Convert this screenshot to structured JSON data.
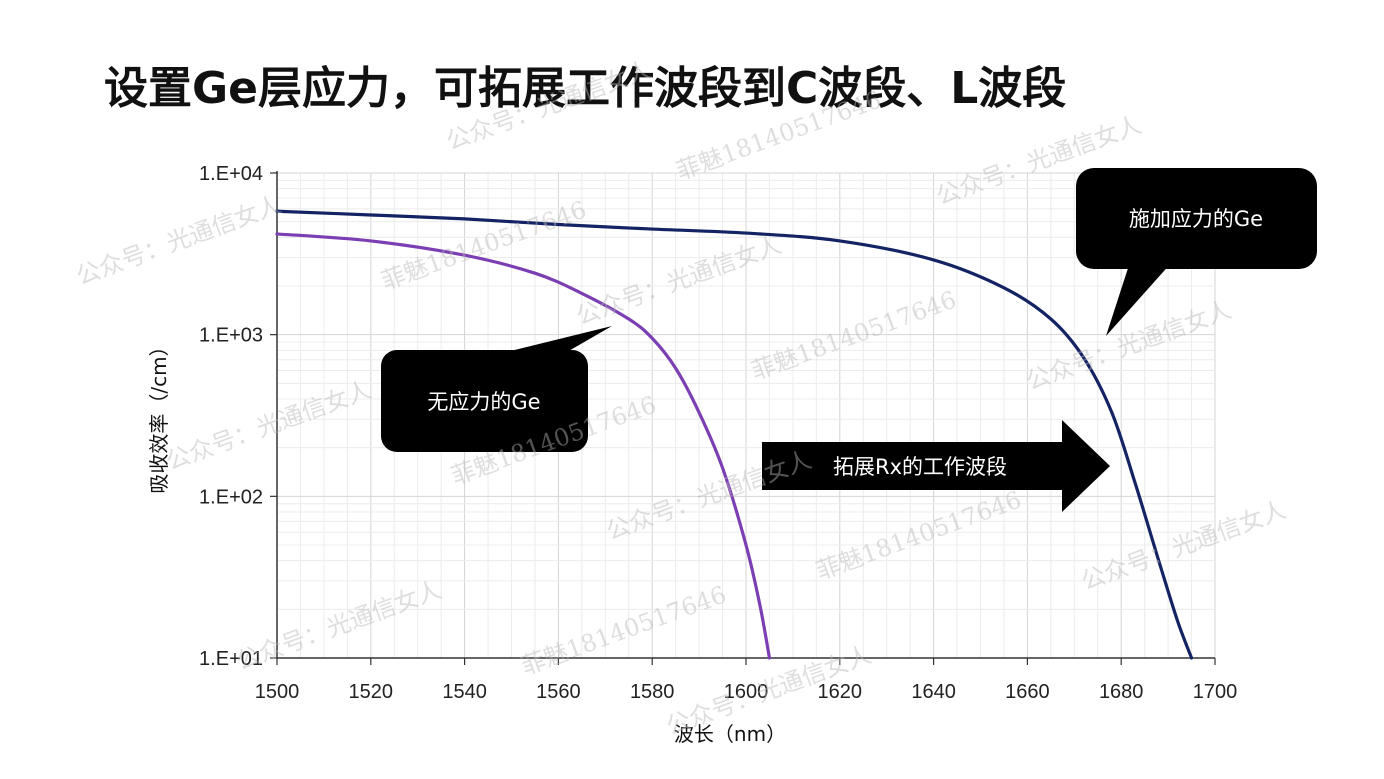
{
  "slide": {
    "title": "设置Ge层应力，可拓展工作波段到C波段、L波段"
  },
  "watermarks": [
    "公众号：光通信女人",
    "菲魅18140517646"
  ],
  "chart_data": {
    "type": "line",
    "xlabel": "波长（nm）",
    "ylabel": "吸收效率（/cm）",
    "xlim": [
      1500,
      1700
    ],
    "ylim": [
      10,
      10000
    ],
    "y_scale": "log",
    "grid": true,
    "x_ticks": [
      1500,
      1520,
      1540,
      1560,
      1580,
      1600,
      1620,
      1640,
      1660,
      1680,
      1700
    ],
    "y_ticks": [
      {
        "value": 10,
        "label": "1.E+01"
      },
      {
        "value": 100,
        "label": "1.E+02"
      },
      {
        "value": 1000,
        "label": "1.E+03"
      },
      {
        "value": 10000,
        "label": "1.E+04"
      }
    ],
    "series": [
      {
        "color": "#7b3fb3",
        "x": [
          1500,
          1520,
          1540,
          1555,
          1565,
          1575,
          1580,
          1585,
          1590,
          1595,
          1600,
          1603,
          1605
        ],
        "y": [
          4200,
          3800,
          3100,
          2400,
          1800,
          1250,
          950,
          620,
          330,
          150,
          50,
          21,
          10
        ]
      },
      {
        "color": "#132364",
        "x": [
          1500,
          1520,
          1540,
          1560,
          1580,
          1600,
          1620,
          1640,
          1655,
          1665,
          1672,
          1678,
          1683,
          1688,
          1692,
          1695
        ],
        "y": [
          5800,
          5500,
          5200,
          4800,
          4500,
          4250,
          3800,
          2900,
          1950,
          1250,
          720,
          330,
          120,
          40,
          17,
          10
        ]
      }
    ],
    "annotations": [
      {
        "text": "施加应力的Ge"
      },
      {
        "text": "无应力的Ge"
      },
      {
        "text": "拓展Rx的工作波段"
      }
    ]
  }
}
